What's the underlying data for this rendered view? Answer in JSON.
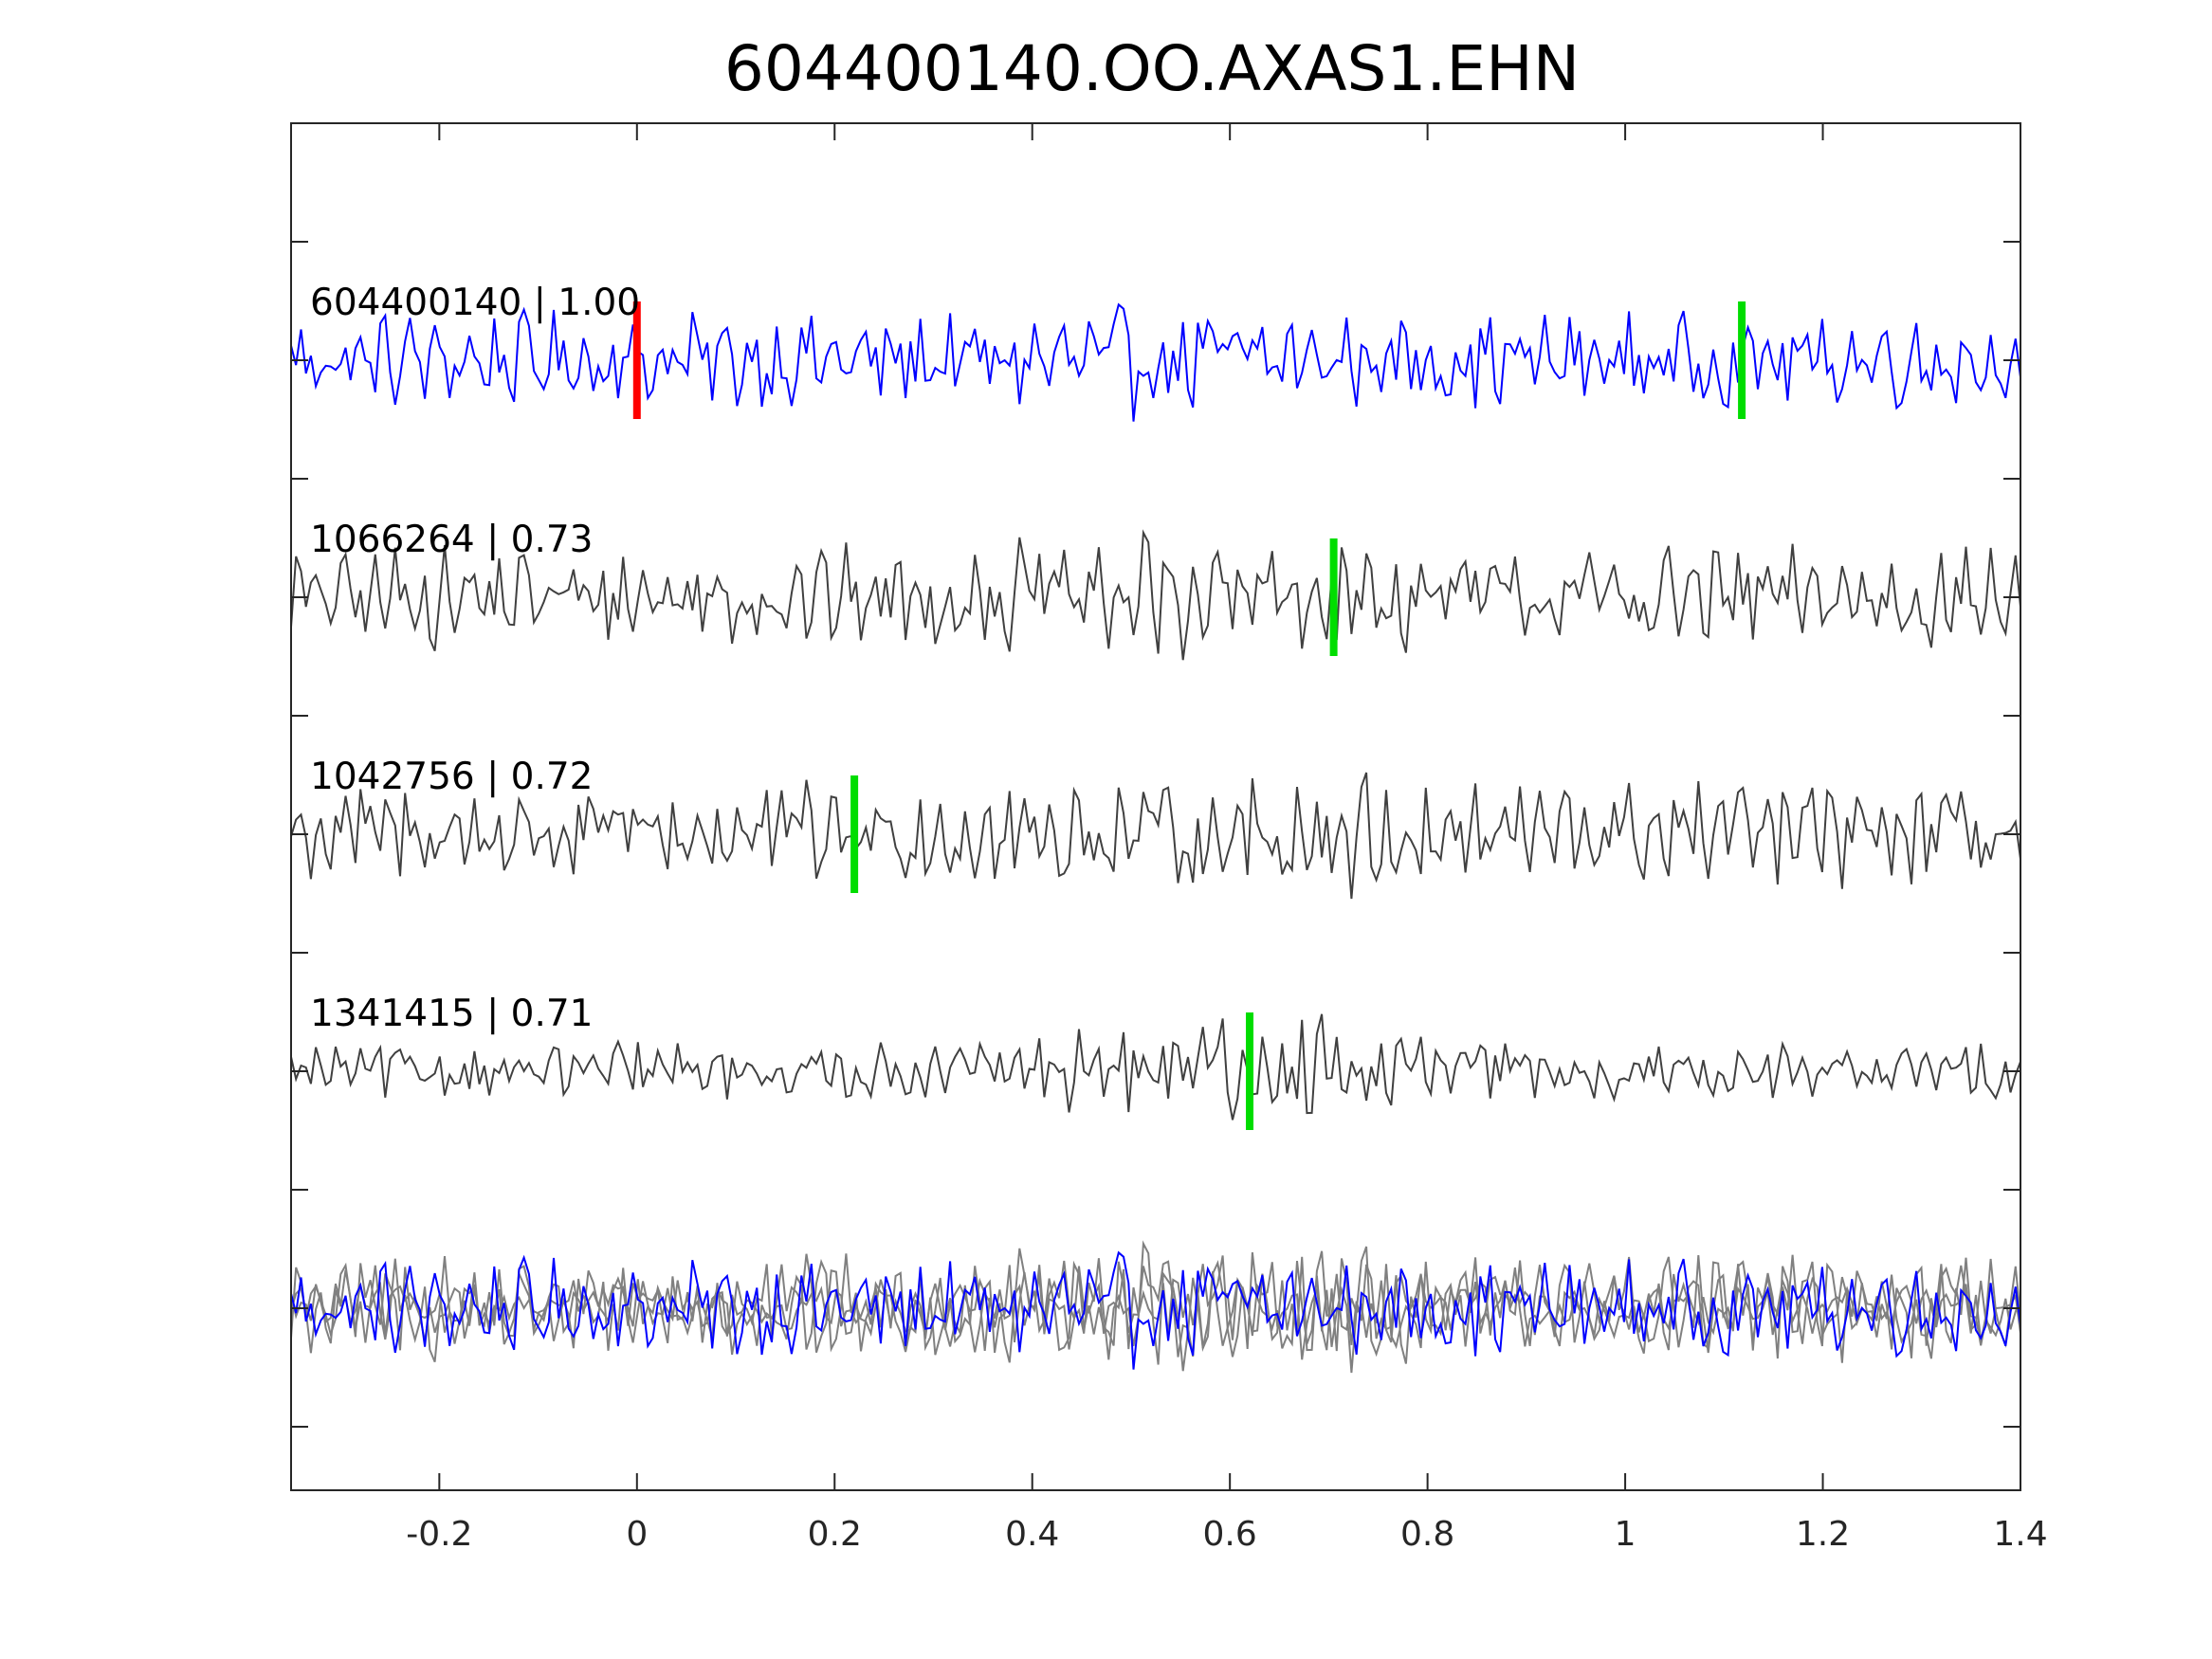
{
  "chart_data": {
    "type": "line",
    "title": "604400140.OO.AXAS1.EHN",
    "xlabel": "",
    "ylabel": "",
    "xlim": [
      -0.35,
      1.4
    ],
    "x_ticks": [
      -0.2,
      0,
      0.2,
      0.4,
      0.6,
      0.8,
      1,
      1.2,
      1.4
    ],
    "x_tick_labels": [
      "-0.2",
      "0",
      "0.2",
      "0.4",
      "0.6",
      "0.8",
      "1",
      "1.2",
      "1.4"
    ],
    "grid": false,
    "legend": "none",
    "colors": {
      "master": "#0000ff",
      "neighbor": "#404040",
      "overlay_neighbor": "#808080",
      "master_pick": "#ff0000",
      "matched_pick": "#00dd00",
      "axes": "#262626"
    },
    "series": [
      {
        "label": "604400140 | 1.00",
        "role": "master",
        "pick_times": [
          0.0,
          1.118
        ]
      },
      {
        "label": "1066264 | 0.73",
        "role": "neighbor",
        "pick_times": [
          0.705
        ]
      },
      {
        "label": "1042756 | 0.72",
        "role": "neighbor",
        "pick_times": [
          0.22
        ]
      },
      {
        "label": "1341415 | 0.71",
        "role": "neighbor",
        "pick_times": [
          0.62
        ]
      }
    ],
    "overlay": "all traces superimposed"
  }
}
